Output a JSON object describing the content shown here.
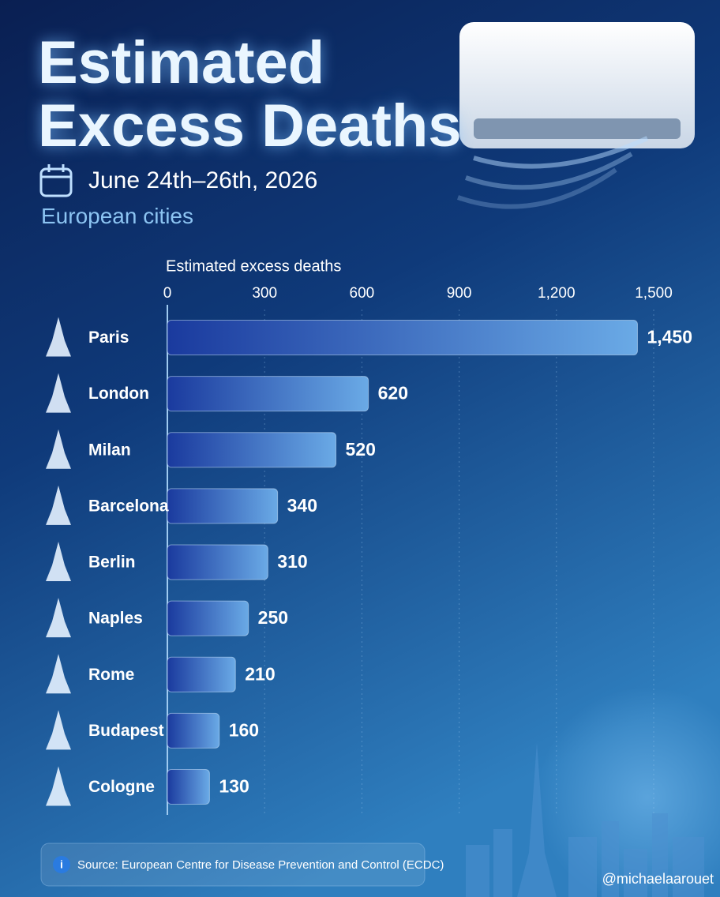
{
  "chart_data": {
    "type": "bar",
    "orientation": "horizontal",
    "title": "Estimated Excess Deaths",
    "subtitle": "June 24th–26th, 2026",
    "subheading": "European cities",
    "x_label": "Estimated excess deaths",
    "categories": [
      "Paris",
      "London",
      "Milan",
      "Barcelona",
      "Berlin",
      "Naples",
      "Rome",
      "Budapest",
      "Cologne"
    ],
    "values": [
      1450,
      620,
      520,
      340,
      310,
      250,
      210,
      160,
      130
    ],
    "value_labels": [
      "1,450",
      "620",
      "520",
      "340",
      "310",
      "250",
      "210",
      "160",
      "130"
    ],
    "color": "#6aaae6",
    "xlim": [
      0,
      1500
    ],
    "xticks": [
      0,
      300,
      600,
      900,
      {
        "value": 1200,
        "label": "1,200"
      },
      {
        "value": 1500,
        "label": "1,500"
      }
    ],
    "grid": true,
    "source": "Source: European Centre for Disease Prevention and Control (ECDC)",
    "watermark": "@michaelaarouet"
  }
}
